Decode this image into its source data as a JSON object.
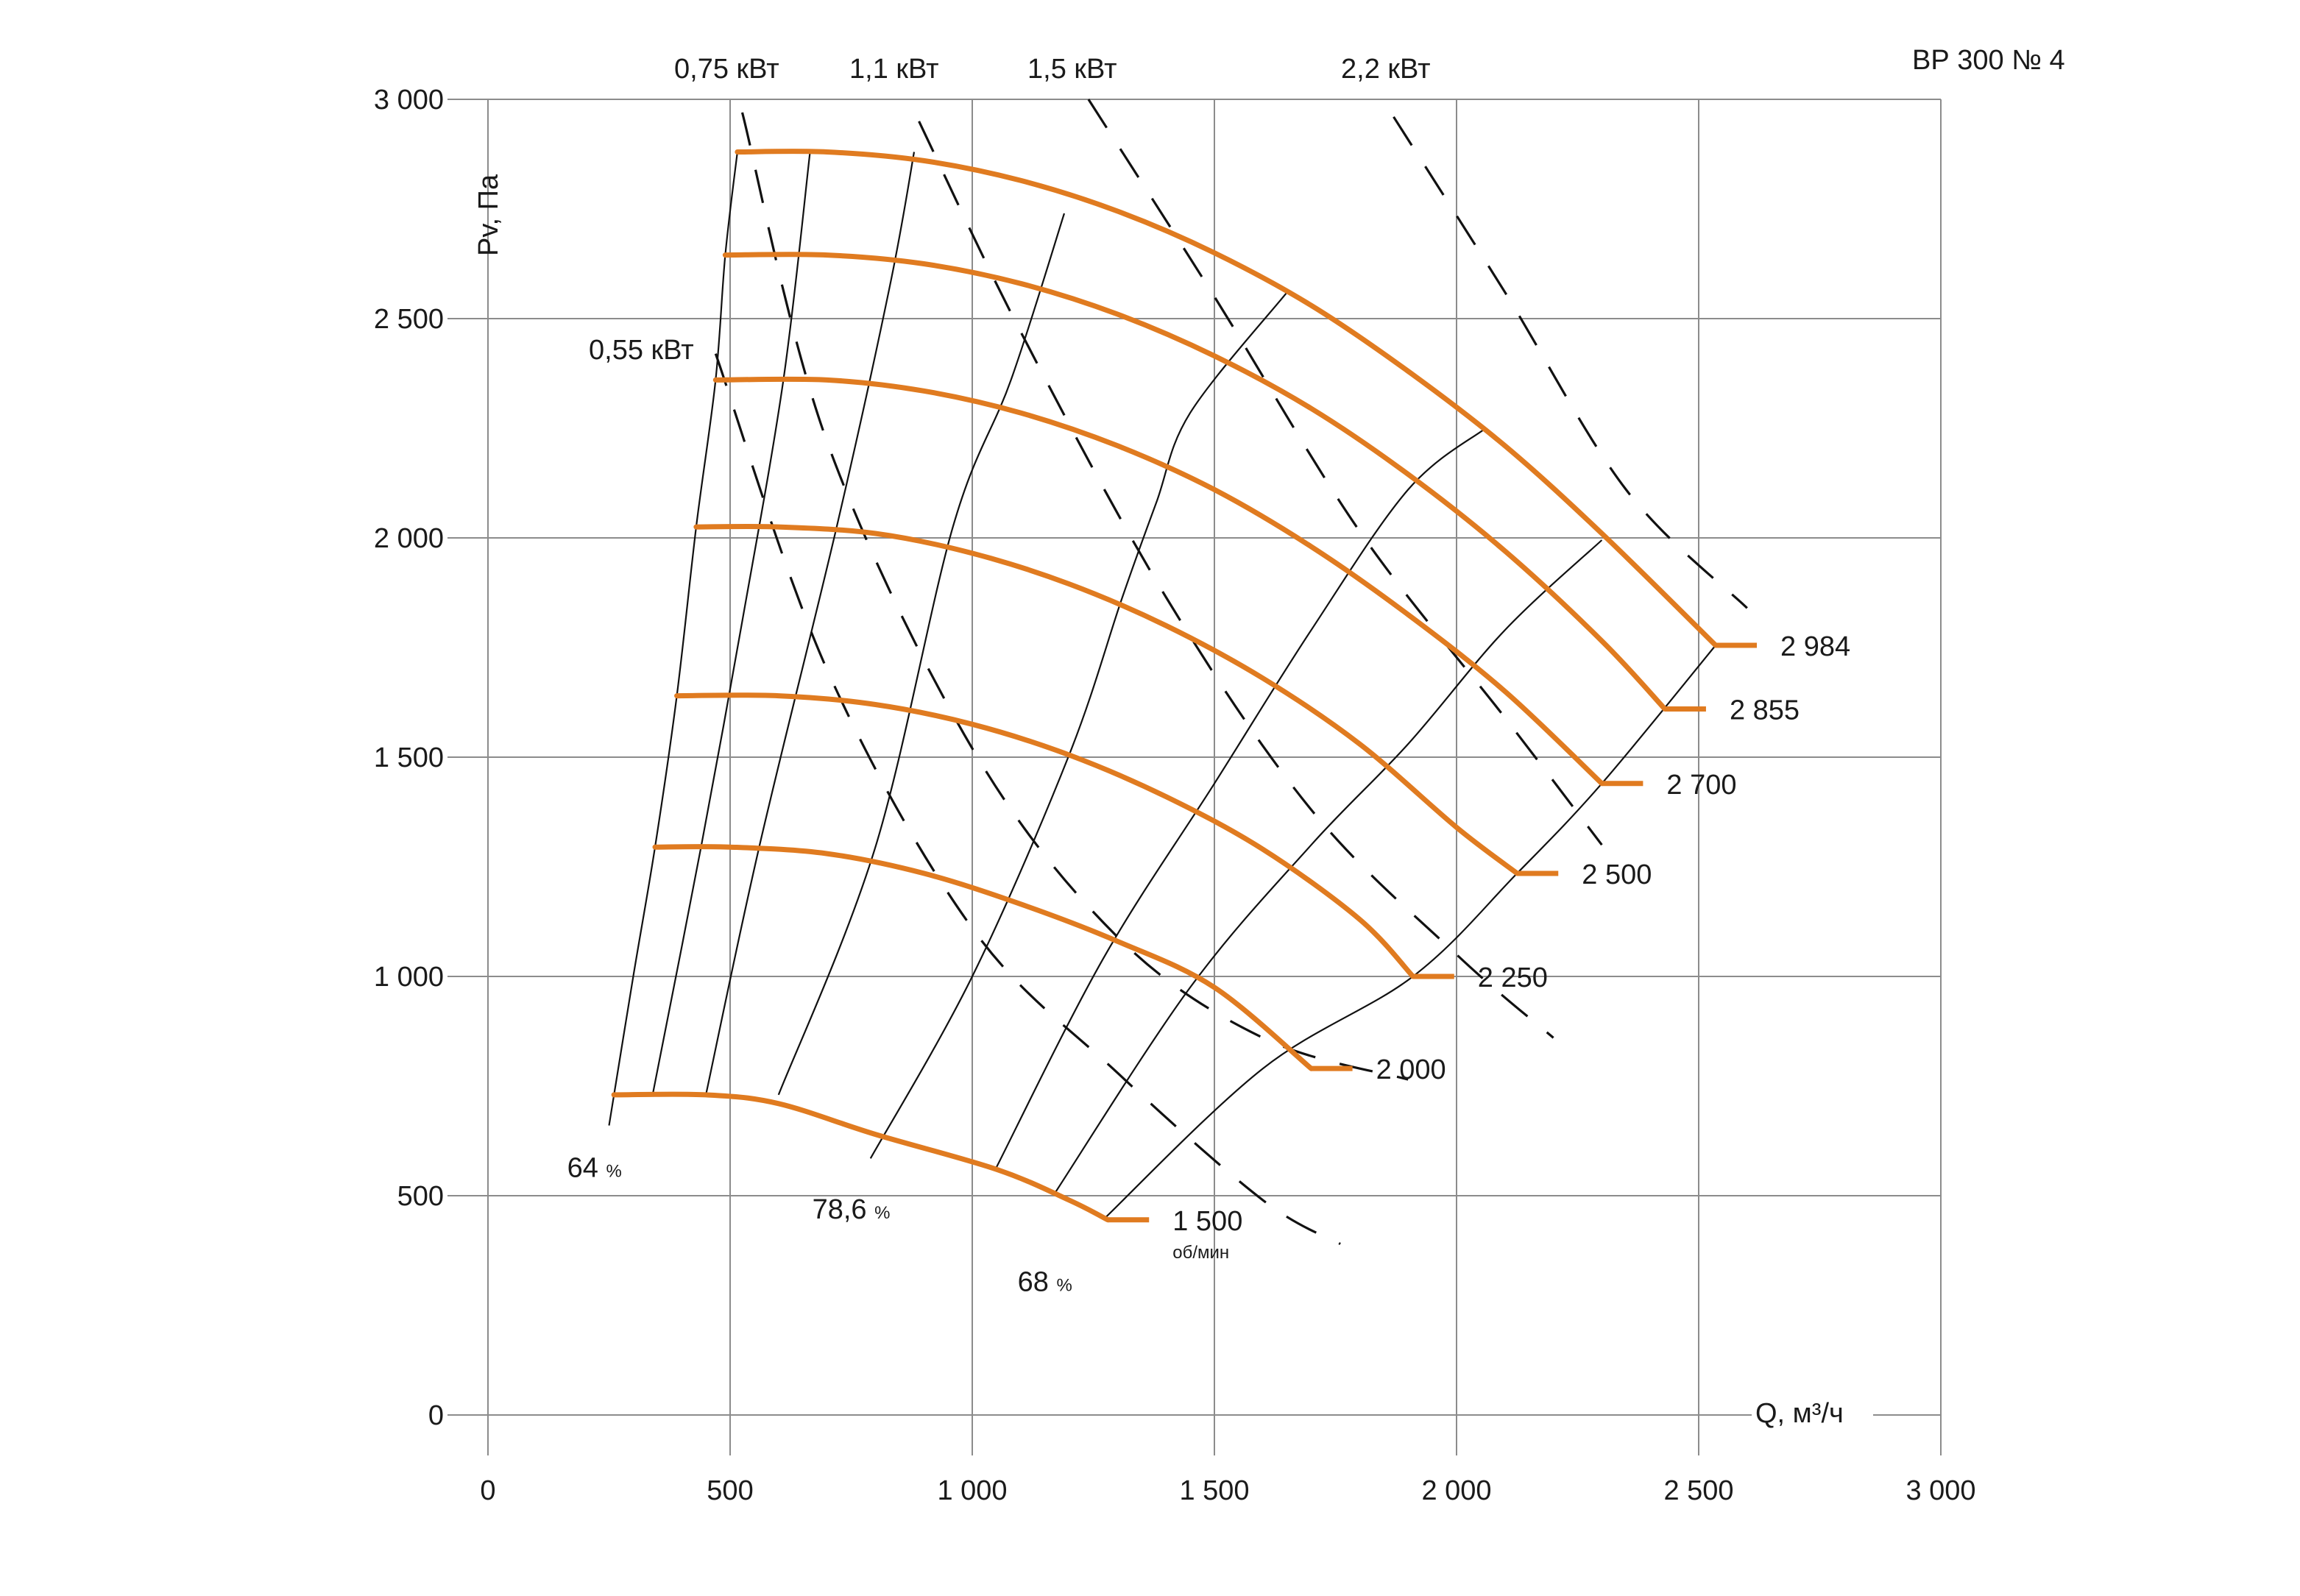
{
  "chart_data": {
    "type": "line",
    "title": "ВР 300 № 4",
    "xlabel": "Q, м³/ч",
    "ylabel": "Pv, Па",
    "xlim": [
      0,
      3000
    ],
    "ylim": [
      0,
      3000
    ],
    "x_ticks": [
      0,
      500,
      1000,
      1500,
      2000,
      2500,
      3000
    ],
    "x_tick_labels": [
      "0",
      "500",
      "1 000",
      "1 500",
      "2 000",
      "2 500",
      "3 000"
    ],
    "y_ticks": [
      0,
      500,
      1000,
      1500,
      2000,
      2500,
      3000
    ],
    "y_tick_labels": [
      "0",
      "500",
      "1 000",
      "1 500",
      "2 000",
      "2 500",
      "3 000"
    ],
    "grid": true,
    "colors": {
      "fan_curve": "#e07b20",
      "efficiency_line": "#111111",
      "power_line": "#111111",
      "grid": "#8c8c8c"
    },
    "speed_unit": "об/мин",
    "series": [
      {
        "name": "1 500",
        "x": [
          260,
          450,
          600,
          800,
          1050,
          1200,
          1280
        ],
        "y": [
          730,
          730,
          710,
          640,
          560,
          490,
          445
        ]
      },
      {
        "name": "2 000",
        "x": [
          345,
          500,
          700,
          900,
          1100,
          1300,
          1500,
          1700
        ],
        "y": [
          1295,
          1295,
          1280,
          1235,
          1165,
          1080,
          975,
          790
        ]
      },
      {
        "name": "2 250",
        "x": [
          390,
          600,
          800,
          1000,
          1200,
          1400,
          1600,
          1800,
          1910
        ],
        "y": [
          1640,
          1640,
          1620,
          1575,
          1505,
          1410,
          1290,
          1130,
          1000
        ]
      },
      {
        "name": "2 500",
        "x": [
          430,
          600,
          800,
          1000,
          1200,
          1400,
          1600,
          1800,
          2000,
          2125
        ],
        "y": [
          2025,
          2025,
          2010,
          1965,
          1895,
          1800,
          1680,
          1530,
          1340,
          1235
        ]
      },
      {
        "name": "2 700",
        "x": [
          470,
          700,
          900,
          1100,
          1300,
          1500,
          1700,
          1900,
          2100,
          2300
        ],
        "y": [
          2360,
          2360,
          2335,
          2285,
          2210,
          2110,
          1980,
          1825,
          1650,
          1440
        ]
      },
      {
        "name": "2 855",
        "x": [
          490,
          700,
          900,
          1100,
          1300,
          1500,
          1700,
          1900,
          2100,
          2300,
          2430
        ],
        "y": [
          2645,
          2645,
          2625,
          2580,
          2510,
          2415,
          2295,
          2145,
          1970,
          1765,
          1610
        ]
      },
      {
        "name": "2 984",
        "x": [
          515,
          700,
          900,
          1100,
          1300,
          1500,
          1700,
          1900,
          2100,
          2300,
          2535
        ],
        "y": [
          2880,
          2880,
          2860,
          2815,
          2745,
          2650,
          2530,
          2380,
          2210,
          2010,
          1755
        ]
      }
    ],
    "efficiency_lines": [
      {
        "x": [
          250,
          300,
          345,
          390,
          430,
          470,
          490,
          515
        ],
        "y": [
          660,
          1000,
          1295,
          1640,
          2025,
          2360,
          2645,
          2880
        ]
      },
      {
        "x": [
          340,
          440,
          525,
          610,
          665
        ],
        "y": [
          730,
          1295,
          1810,
          2360,
          2880
        ]
      },
      {
        "x": [
          450,
          560,
          720,
          830,
          880
        ],
        "y": [
          730,
          1295,
          2025,
          2575,
          2880
        ]
      },
      {
        "x": [
          600,
          800,
          960,
          1080,
          1190
        ],
        "y": [
          730,
          1295,
          2025,
          2360,
          2740
        ]
      },
      {
        "x": [
          790,
          1000,
          1200,
          1310,
          1380,
          1450,
          1650
        ],
        "y": [
          585,
          1000,
          1505,
          1865,
          2080,
          2285,
          2560
        ]
      },
      {
        "x": [
          1050,
          1270,
          1500,
          1700,
          1900,
          2060
        ],
        "y": [
          565,
          1040,
          1440,
          1790,
          2110,
          2250
        ]
      },
      {
        "x": [
          1170,
          1450,
          1700,
          1900,
          2100,
          2300
        ],
        "y": [
          505,
          975,
          1300,
          1530,
          1790,
          1995
        ]
      },
      {
        "x": [
          1270,
          1600,
          1910,
          2125,
          2300,
          2535
        ],
        "y": [
          445,
          790,
          1000,
          1235,
          1440,
          1755
        ]
      }
    ],
    "efficiency_labels": [
      {
        "value": "64",
        "unit": "%",
        "x": 220,
        "y": 610
      },
      {
        "value": "78,6",
        "unit": "%",
        "x": 750,
        "y": 515
      },
      {
        "value": "68",
        "unit": "%",
        "x": 1150,
        "y": 350
      }
    ],
    "power_lines": [
      {
        "name": "0,55 кВт",
        "x": [
          470,
          700,
          1000,
          1300,
          1600,
          1760
        ],
        "y": [
          2420,
          1700,
          1110,
          780,
          490,
          390
        ]
      },
      {
        "name": "0,75 кВт",
        "x": [
          525,
          700,
          1000,
          1300,
          1600,
          1900
        ],
        "y": [
          2970,
          2220,
          1520,
          1090,
          860,
          765
        ]
      },
      {
        "name": "1,1 кВт",
        "x": [
          890,
          1100,
          1400,
          1700,
          2000,
          2200
        ],
        "y": [
          2950,
          2470,
          1865,
          1380,
          1050,
          860
        ]
      },
      {
        "name": "1,5 кВт",
        "x": [
          1240,
          1500,
          1800,
          2100,
          2300
        ],
        "y": [
          3000,
          2550,
          2015,
          1590,
          1300
        ]
      },
      {
        "name": "2,2 кВт",
        "x": [
          1870,
          2100,
          2350,
          2600
        ],
        "y": [
          2960,
          2560,
          2110,
          1840
        ]
      }
    ],
    "power_labels_top": [
      "0,75 кВт",
      "1,1 кВт",
      "1,5 кВт",
      "2,2 кВт"
    ],
    "power_label_side": "0,55 кВт"
  }
}
